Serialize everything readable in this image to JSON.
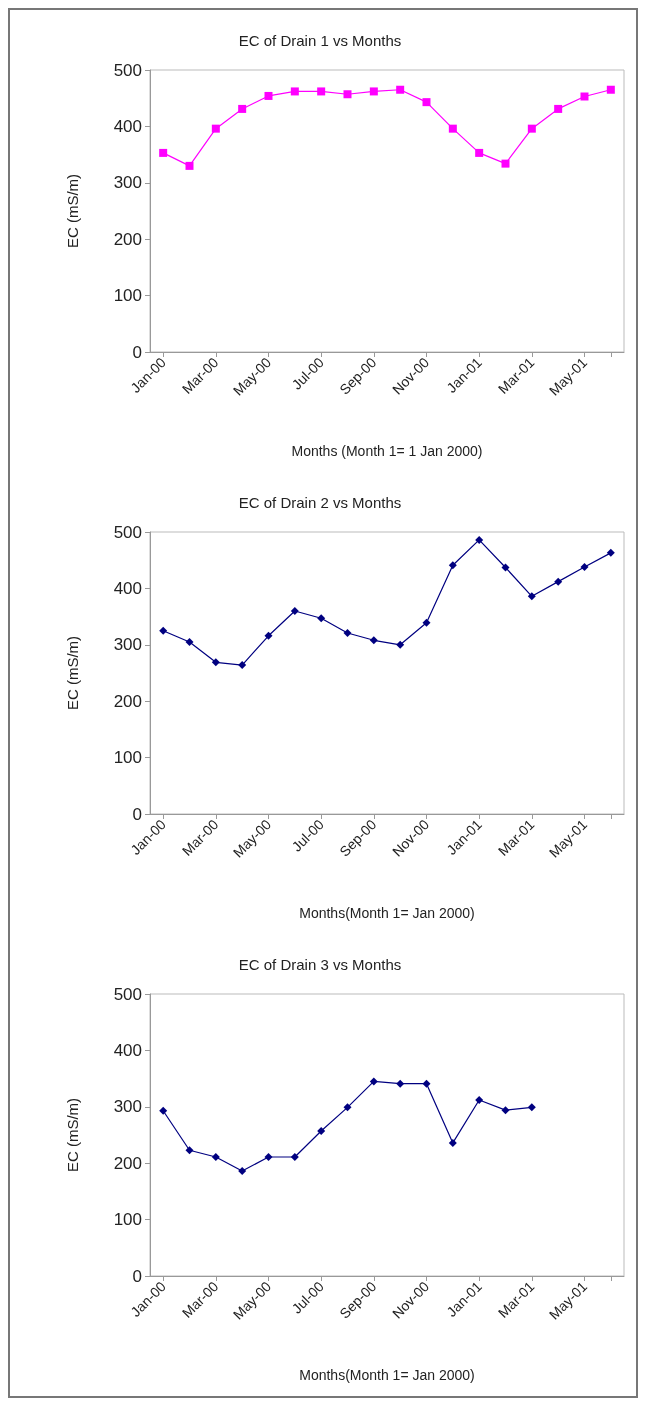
{
  "chart_data": [
    {
      "type": "line",
      "title": "EC of Drain 1 vs Months",
      "xlabel": "Months (Month 1= 1 Jan 2000)",
      "ylabel": "EC (mS/m)",
      "categories": [
        "Jan-00",
        null,
        "Mar-00",
        null,
        "May-00",
        null,
        "Jul-00",
        null,
        "Sep-00",
        null,
        "Nov-00",
        null,
        "Jan-01",
        null,
        "Mar-01",
        null,
        "May-01",
        null
      ],
      "series": [
        {
          "color": "#ff00ff",
          "values": [
            353,
            330,
            396,
            431,
            454,
            462,
            462,
            457,
            462,
            465,
            443,
            396,
            353,
            334,
            396,
            431,
            453,
            465
          ]
        }
      ],
      "ylim": [
        0,
        500
      ],
      "yticks": [
        0,
        100,
        200,
        300,
        400,
        500
      ],
      "marker": "square",
      "line_style": "solid"
    },
    {
      "type": "line",
      "title": "EC of Drain 2 vs Months",
      "xlabel": "Months(Month 1= Jan 2000)",
      "ylabel": "EC (mS/m)",
      "categories": [
        "Jan-00",
        null,
        "Mar-00",
        null,
        "May-00",
        null,
        "Jul-00",
        null,
        "Sep-00",
        null,
        "Nov-00",
        null,
        "Jan-01",
        null,
        "Mar-01",
        null,
        "May-01",
        null
      ],
      "series": [
        {
          "color": "#000080",
          "values": [
            325,
            305,
            269,
            264,
            316,
            360,
            347,
            321,
            308,
            300,
            339,
            441,
            486,
            437,
            386,
            412,
            438,
            463
          ]
        }
      ],
      "ylim": [
        0,
        500
      ],
      "yticks": [
        0,
        100,
        200,
        300,
        400,
        500
      ],
      "marker": "diamond",
      "line_style": "solid"
    },
    {
      "type": "line",
      "title": "EC of Drain 3 vs Months",
      "xlabel": "Months(Month 1= Jan 2000)",
      "ylabel": "EC (mS/m)",
      "categories": [
        "Jan-00",
        null,
        "Mar-00",
        null,
        "May-00",
        null,
        "Jul-00",
        null,
        "Sep-00",
        null,
        "Nov-00",
        null,
        "Jan-01",
        null,
        "Mar-01",
        null,
        "May-01",
        null
      ],
      "series": [
        {
          "color": "#000080",
          "values": [
            293,
            223,
            211,
            186,
            211,
            211,
            257,
            299,
            345,
            341,
            341,
            236,
            312,
            294,
            299,
            null,
            null,
            null
          ]
        }
      ],
      "ylim": [
        0,
        500
      ],
      "yticks": [
        0,
        100,
        200,
        300,
        400,
        500
      ],
      "marker": "diamond",
      "line_style": "solid"
    }
  ]
}
